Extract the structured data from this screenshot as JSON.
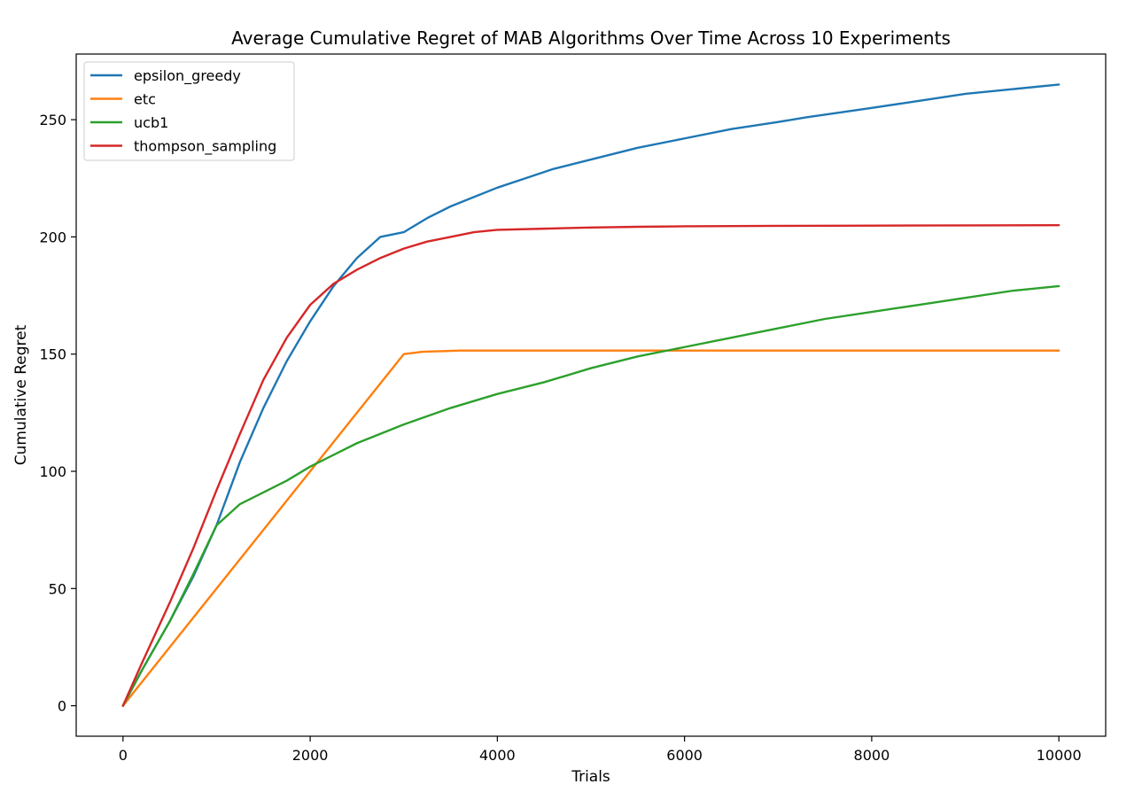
{
  "chart_data": {
    "type": "line",
    "title": "Average Cumulative Regret of MAB Algorithms Over Time Across 10 Experiments",
    "xlabel": "Trials",
    "ylabel": "Cumulative Regret",
    "xlim": [
      -500,
      10500
    ],
    "ylim": [
      -13,
      278
    ],
    "xticks": [
      0,
      2000,
      4000,
      6000,
      8000,
      10000
    ],
    "xtick_labels": [
      "0",
      "2000",
      "4000",
      "6000",
      "8000",
      "10000"
    ],
    "yticks": [
      0,
      50,
      100,
      150,
      200,
      250
    ],
    "ytick_labels": [
      "0",
      "50",
      "100",
      "150",
      "200",
      "250"
    ],
    "grid": false,
    "legend": "upper-left",
    "series": [
      {
        "name": "epsilon_greedy",
        "color": "#1f77b4",
        "x": [
          0,
          200,
          500,
          750,
          1000,
          1250,
          1500,
          1750,
          2000,
          2250,
          2500,
          2750,
          3000,
          3250,
          3500,
          3750,
          4000,
          4300,
          4600,
          5000,
          5500,
          6000,
          6500,
          7000,
          7300,
          8000,
          8500,
          9000,
          9500,
          10000
        ],
        "y": [
          0,
          15,
          36,
          55,
          77,
          104,
          127,
          147,
          164,
          179,
          191,
          200,
          202,
          208,
          213,
          217,
          221,
          225,
          229,
          233,
          238,
          242,
          246,
          249,
          251,
          255,
          258,
          261,
          263,
          265
        ]
      },
      {
        "name": "etc",
        "color": "#ff7f0e",
        "x": [
          0,
          3000,
          3200,
          3600,
          4000,
          10000
        ],
        "y": [
          0,
          150,
          151,
          151.5,
          151.5,
          151.5
        ]
      },
      {
        "name": "ucb1",
        "color": "#2ca02c",
        "x": [
          0,
          200,
          500,
          750,
          1000,
          1250,
          1500,
          1750,
          2000,
          2500,
          3000,
          3500,
          4000,
          4500,
          5000,
          5500,
          6000,
          6500,
          7000,
          7500,
          8000,
          8500,
          9000,
          9500,
          10000
        ],
        "y": [
          0,
          15,
          36,
          56,
          77,
          86,
          91,
          96,
          102,
          112,
          120,
          127,
          133,
          138,
          144,
          149,
          153,
          157,
          161,
          165,
          168,
          171,
          174,
          177,
          179
        ]
      },
      {
        "name": "thompson_sampling",
        "color": "#d62728",
        "x": [
          0,
          200,
          500,
          750,
          1000,
          1250,
          1500,
          1750,
          2000,
          2250,
          2500,
          2750,
          3000,
          3250,
          3500,
          3750,
          4000,
          4500,
          5000,
          5500,
          6000,
          7000,
          8000,
          9000,
          10000
        ],
        "y": [
          0,
          18,
          44,
          67,
          92,
          116,
          139,
          157,
          171,
          180,
          186,
          191,
          195,
          198,
          200,
          202,
          203,
          203.5,
          204,
          204.3,
          204.5,
          204.7,
          204.8,
          204.9,
          205
        ]
      }
    ]
  }
}
